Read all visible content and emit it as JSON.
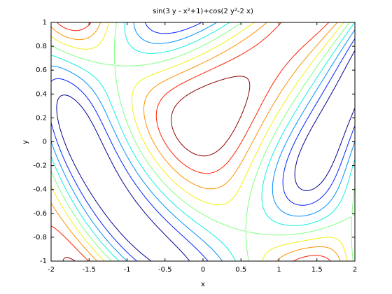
{
  "chart_data": {
    "type": "contour",
    "title": "sin(3 y - x²+1)+cos(2 y²-2 x)",
    "x_label": "x",
    "y_label": "y",
    "xlim": [
      -2,
      2
    ],
    "ylim": [
      -1,
      1
    ],
    "xticks": [
      -2,
      -1.5,
      -1,
      -0.5,
      0,
      0.5,
      1,
      1.5,
      2
    ],
    "yticks": [
      -1,
      -0.8,
      -0.6,
      -0.4,
      -0.2,
      0,
      0.2,
      0.4,
      0.6,
      0.8,
      1
    ],
    "levels": [
      -1.6,
      -1.2,
      -0.8,
      -0.4,
      0,
      0.4,
      0.8,
      1.2,
      1.6
    ],
    "colors": [
      "#00008f",
      "#0020ff",
      "#0090ff",
      "#10f0e0",
      "#80ff80",
      "#f0f010",
      "#ff9000",
      "#ff2000",
      "#8f0000"
    ]
  }
}
